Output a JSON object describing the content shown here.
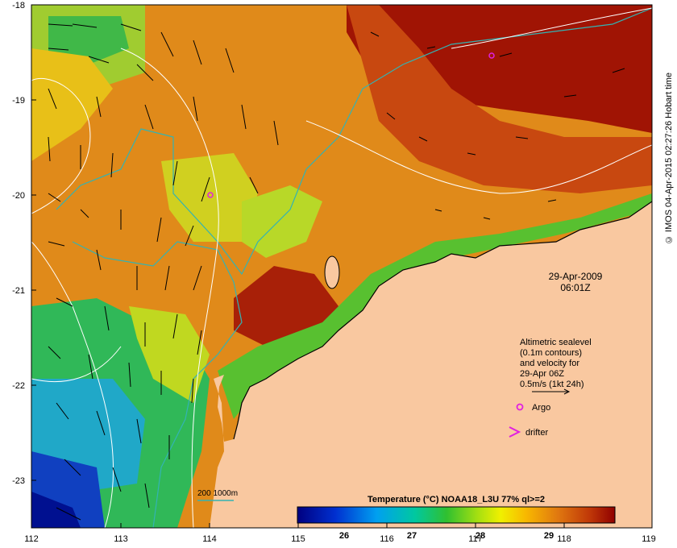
{
  "map": {
    "lat_ticks": [
      "-18",
      "-19",
      "-20",
      "-21",
      "-22",
      "-23"
    ],
    "lon_ticks": [
      "112",
      "113",
      "114",
      "115",
      "116",
      "117",
      "118",
      "119"
    ],
    "date": "29-Apr-2009",
    "time": "06:01Z",
    "legend_text": [
      "Altimetric sealevel",
      "(0.1m contours)",
      "and velocity for",
      "29-Apr 06Z",
      "0.5m/s (1kt 24h)"
    ],
    "argo_label": "Argo",
    "drifter_label": "drifter",
    "depth_label": "200  1000m",
    "colorbar_title": "Temperature (°C) NOAA18_L3U 77% ql>=2",
    "colorbar_ticks": [
      "26",
      "27",
      "28",
      "29"
    ],
    "credit": "© IMOS 04-Apr-2015 02:27:26 Hobart time"
  },
  "colors": {
    "land": "#f9c8a0",
    "contour": "#ffffff",
    "isobath": "#33b3b3",
    "marker": "#e020e0"
  }
}
